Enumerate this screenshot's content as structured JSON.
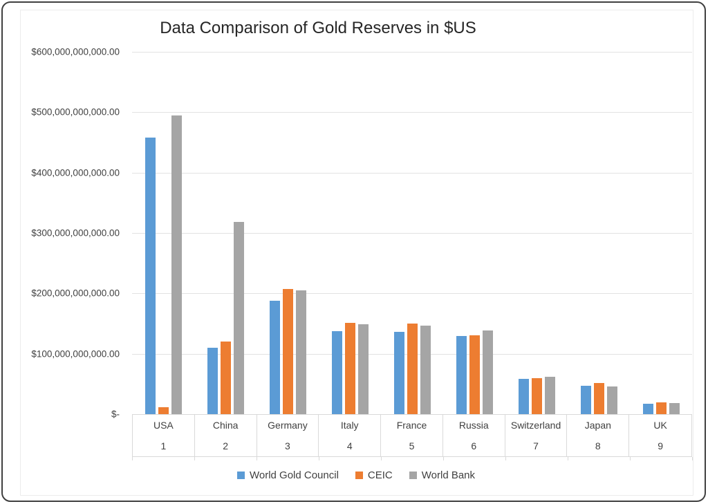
{
  "title": "Data Comparison of Gold Reserves in $US",
  "chart_data": {
    "type": "bar",
    "title": "Data Comparison of Gold Reserves in $US",
    "categories": [
      "USA",
      "China",
      "Germany",
      "Italy",
      "France",
      "Russia",
      "Switzerland",
      "Japan",
      "UK"
    ],
    "category_ranks": [
      "1",
      "2",
      "3",
      "4",
      "5",
      "6",
      "7",
      "8",
      "9"
    ],
    "series": [
      {
        "name": "World Gold Council",
        "color": "#5B9BD5",
        "values": [
          458000000000,
          110000000000,
          188000000000,
          137000000000,
          136000000000,
          129000000000,
          58000000000,
          47000000000,
          17000000000
        ]
      },
      {
        "name": "CEIC",
        "color": "#ED7D31",
        "values": [
          11000000000,
          120000000000,
          207000000000,
          151000000000,
          150000000000,
          131000000000,
          60000000000,
          51000000000,
          19000000000
        ]
      },
      {
        "name": "World Bank",
        "color": "#A5A5A5",
        "values": [
          495000000000,
          318000000000,
          205000000000,
          149000000000,
          147000000000,
          139000000000,
          62000000000,
          46000000000,
          18000000000
        ]
      }
    ],
    "xlabel": "",
    "ylabel": "",
    "ylim": [
      0,
      600000000000
    ],
    "y_tick_labels": [
      "$600,000,000,000.00",
      "$500,000,000,000.00",
      "$400,000,000,000.00",
      "$300,000,000,000.00",
      "$200,000,000,000.00",
      "$100,000,000,000.00",
      "$-"
    ],
    "grid": true,
    "legend_position": "bottom",
    "gridline_color": "#e2e2e2",
    "axis_box_color": "#d9d9d9",
    "text_color": "#404040",
    "title_color": "#262626"
  }
}
